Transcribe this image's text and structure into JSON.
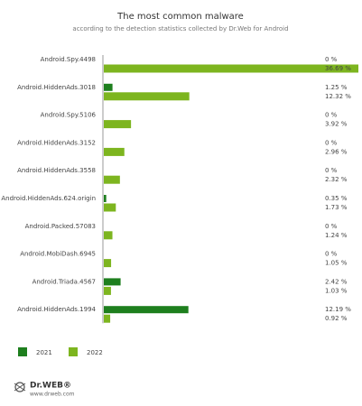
{
  "chart_data": {
    "type": "hbar",
    "title": "The most common malware",
    "subtitle": "according to the detection statistics collected by Dr.Web for Android",
    "categories": [
      "Android.Spy.4498",
      "Android.HiddenAds.3018",
      "Android.Spy.5106",
      "Android.HiddenAds.3152",
      "Android.HiddenAds.3558",
      "Android.HiddenAds.624.origin",
      "Android.Packed.57083",
      "Android.MobiDash.6945",
      "Android.Triada.4567",
      "Android.HiddenAds.1994"
    ],
    "series": [
      {
        "name": "2021",
        "color": "#1e7f1e",
        "values": [
          0,
          1.25,
          0,
          0,
          0,
          0.35,
          0,
          0,
          2.42,
          12.19
        ],
        "value_labels": [
          "0 %",
          "1.25 %",
          "0 %",
          "0 %",
          "0 %",
          "0.35 %",
          "0 %",
          "0 %",
          "2.42 %",
          "12.19 %"
        ]
      },
      {
        "name": "2022",
        "color": "#7db51f",
        "values": [
          36.69,
          12.32,
          3.92,
          2.96,
          2.32,
          1.73,
          1.24,
          1.05,
          1.03,
          0.92
        ],
        "value_labels": [
          "36.69 %",
          "12.32 %",
          "3.92 %",
          "2.96 %",
          "2.32 %",
          "1.73 %",
          "1.24 %",
          "1.05 %",
          "1.03 %",
          "0.92 %"
        ]
      }
    ]
  },
  "logo": {
    "brand": "Dr.WEB®",
    "url": "www.drweb.com"
  }
}
